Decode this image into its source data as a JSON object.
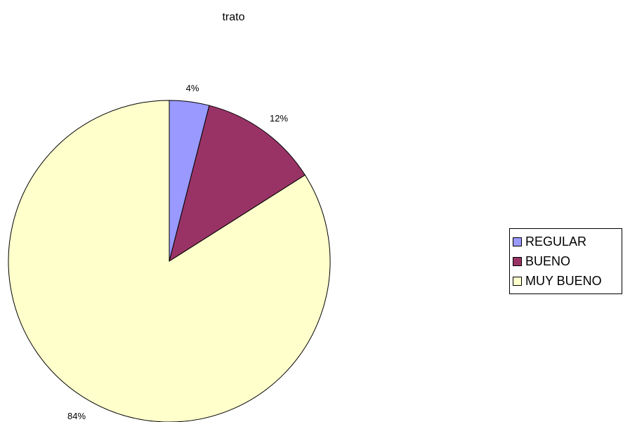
{
  "chart_data": {
    "type": "pie",
    "title": "trato",
    "categories": [
      "REGULAR",
      "BUENO",
      "MUY BUENO"
    ],
    "values": [
      4,
      12,
      84
    ],
    "data_labels": [
      "4%",
      "12%",
      "84%"
    ],
    "colors": [
      "#9999FF",
      "#993366",
      "#FFFFCC"
    ],
    "legend_position": "right"
  }
}
